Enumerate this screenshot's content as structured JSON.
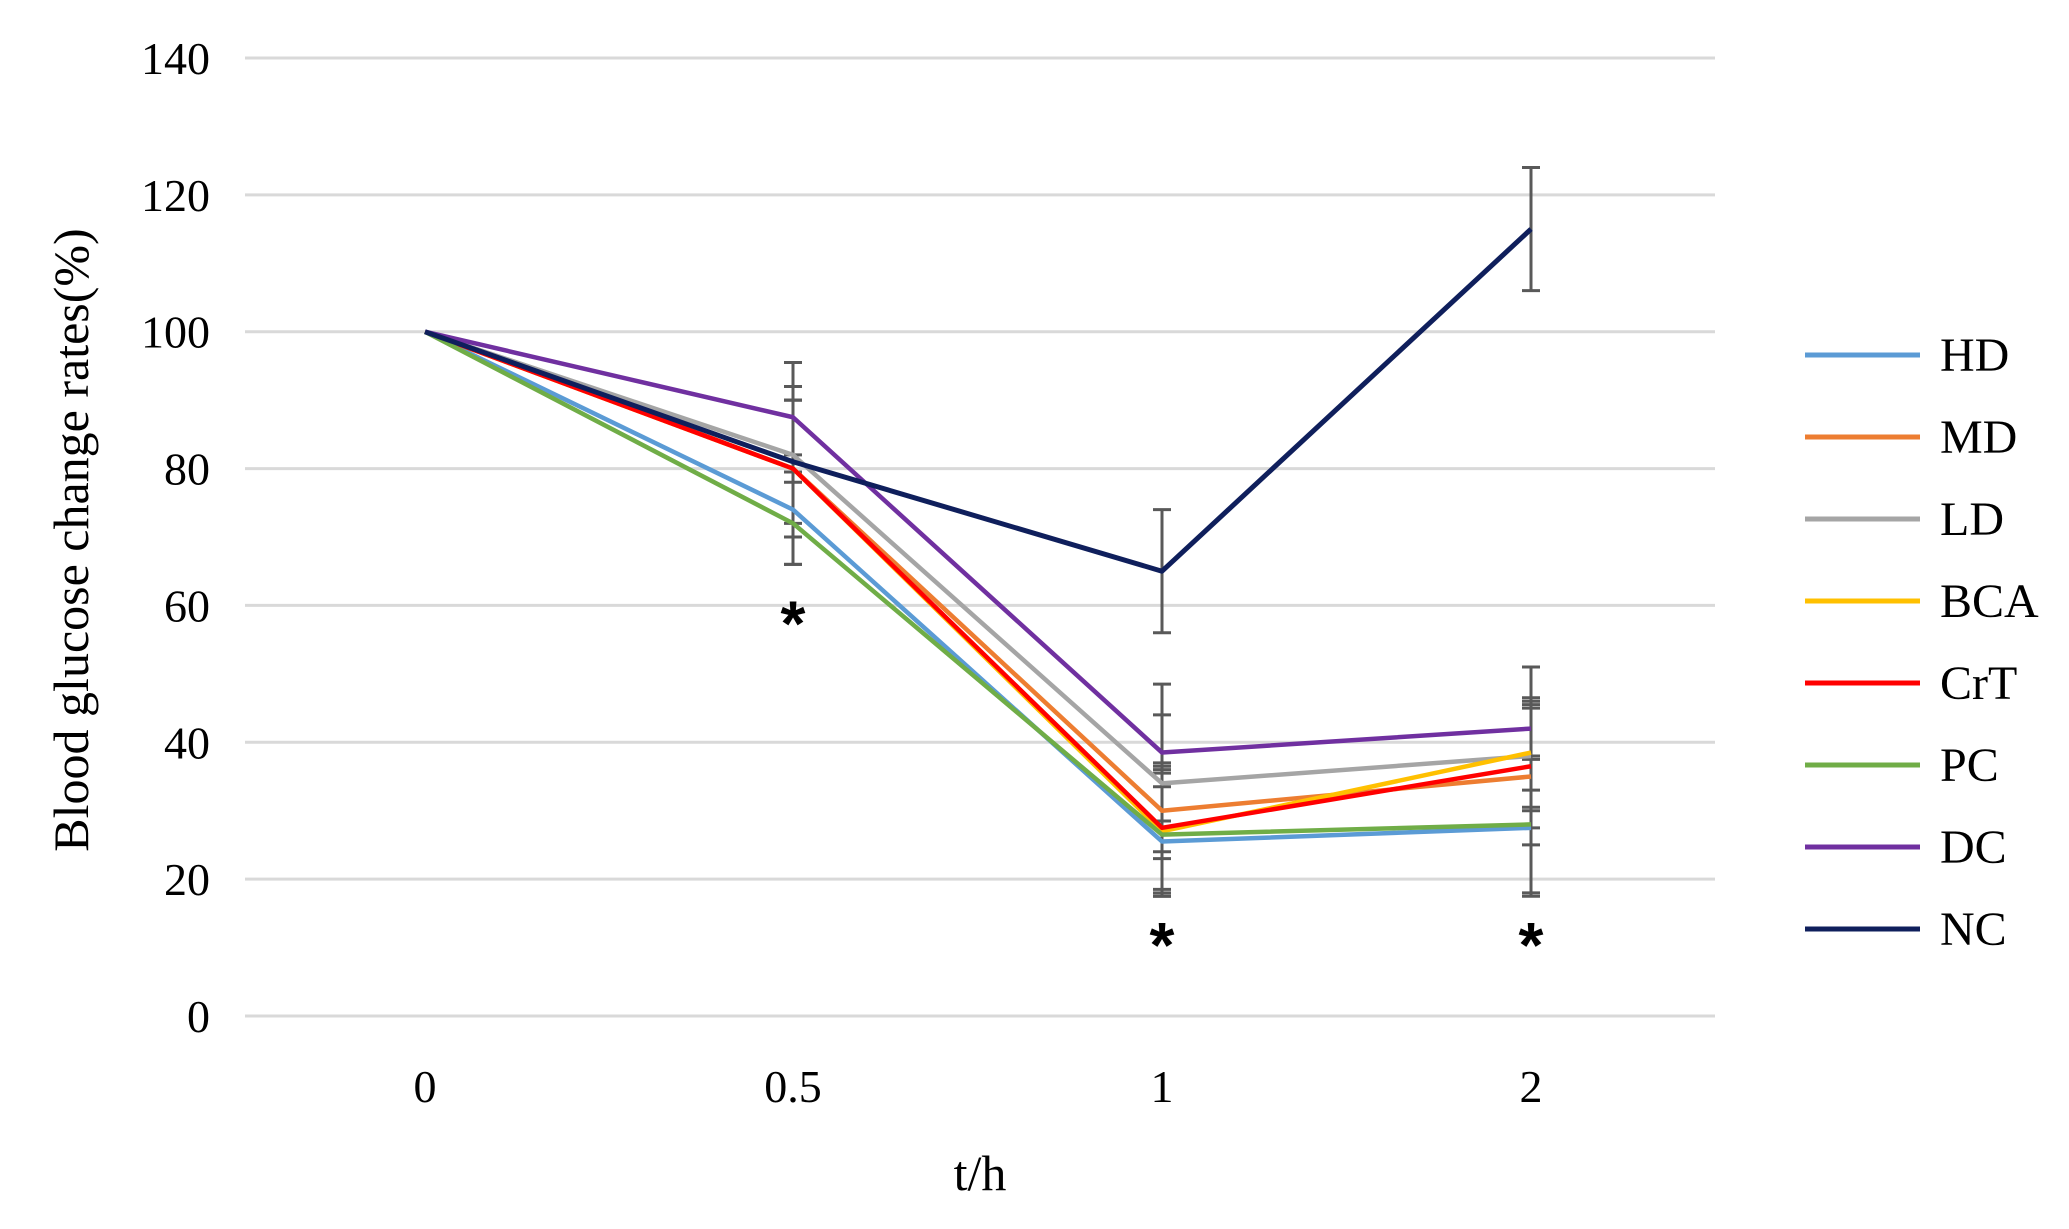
{
  "chart_data": {
    "type": "line",
    "title": "",
    "xlabel": "t/h",
    "ylabel": "Blood glucose change rates(%)",
    "categories": [
      "0",
      "0.5",
      "1",
      "2"
    ],
    "ylim": [
      0,
      140
    ],
    "yticks": [
      0,
      20,
      40,
      60,
      80,
      100,
      120,
      140
    ],
    "grid": true,
    "legend_position": "right",
    "series": [
      {
        "name": "HD",
        "color": "#5b9bd5",
        "values": [
          100,
          74,
          25.5,
          27.5
        ],
        "errors": [
          0,
          8,
          8,
          10
        ]
      },
      {
        "name": "MD",
        "color": "#ed7d31",
        "values": [
          100,
          80,
          30,
          35
        ],
        "errors": [
          0,
          10,
          7,
          10
        ]
      },
      {
        "name": "LD",
        "color": "#a5a5a5",
        "values": [
          100,
          82,
          34,
          38
        ],
        "errors": [
          0,
          10,
          10,
          8
        ]
      },
      {
        "name": "BCA",
        "color": "#ffc000",
        "values": [
          100,
          80,
          27,
          38.5
        ],
        "errors": [
          0,
          10,
          9,
          8
        ]
      },
      {
        "name": "CrT",
        "color": "#ff0000",
        "values": [
          100,
          80,
          27.5,
          36.5
        ],
        "errors": [
          0,
          10,
          9,
          9
        ]
      },
      {
        "name": "PC",
        "color": "#70ad47",
        "values": [
          100,
          72,
          26.5,
          28
        ],
        "errors": [
          0,
          6,
          9,
          10
        ]
      },
      {
        "name": "DC",
        "color": "#7030a0",
        "values": [
          100,
          87.5,
          38.5,
          42
        ],
        "errors": [
          0,
          8,
          10,
          9
        ]
      },
      {
        "name": "NC",
        "color": "#0f1f5c",
        "values": [
          100,
          81,
          65,
          115
        ],
        "errors": [
          0,
          0,
          9,
          9
        ]
      }
    ],
    "annotations": [
      {
        "text": "*",
        "x": "0.5",
        "y": 60
      },
      {
        "text": "*",
        "x": "1",
        "y": 13
      },
      {
        "text": "*",
        "x": "2",
        "y": 13
      }
    ]
  }
}
